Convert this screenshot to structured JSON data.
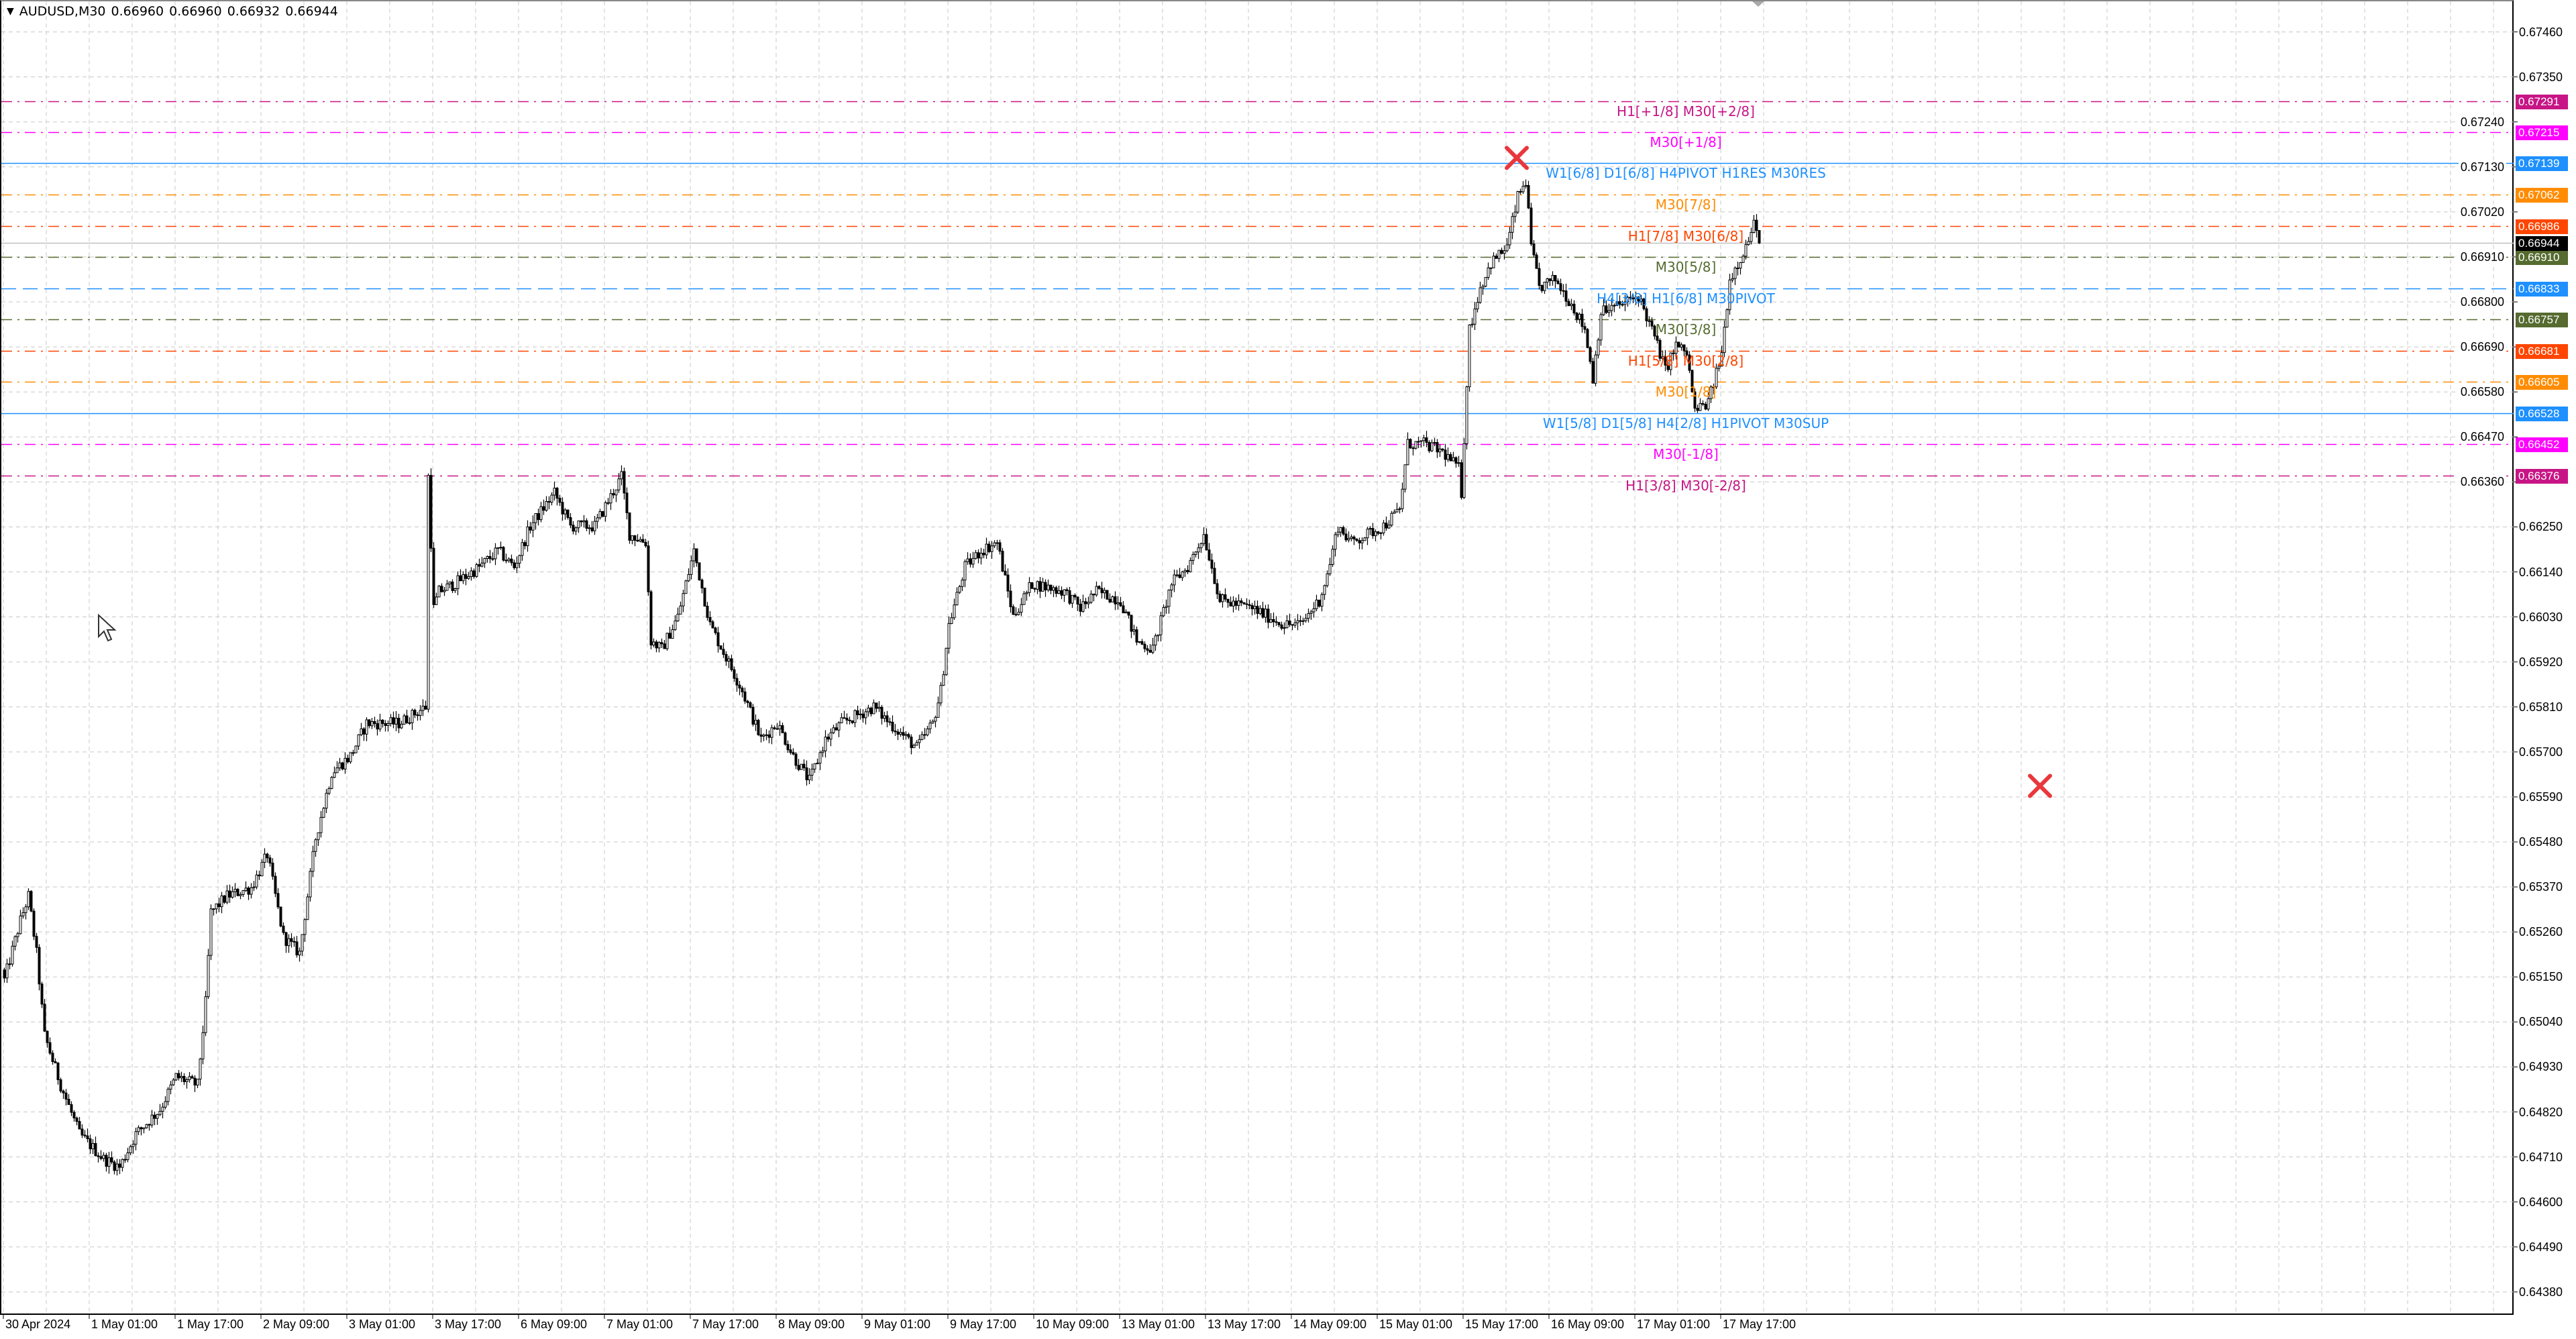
{
  "header": {
    "symbol_tf": "AUDUSD,M30",
    "open": "0.66960",
    "high": "0.66960",
    "low": "0.66932",
    "close": "0.66944"
  },
  "chart_data": {
    "type": "candlestick",
    "title": "AUDUSD,M30",
    "ylim": [
      0.64324,
      0.67538
    ],
    "grid": true,
    "current_price": {
      "value": 0.66944,
      "label": "0.66944",
      "color": "#000000"
    },
    "y_ticks": [
      "0.67460",
      "0.67350",
      "0.67240",
      "0.67130",
      "0.67020",
      "0.66910",
      "0.66800",
      "0.66690",
      "0.66580",
      "0.66470",
      "0.66360",
      "0.66250",
      "0.66140",
      "0.66030",
      "0.65920",
      "0.65810",
      "0.65700",
      "0.65590",
      "0.65480",
      "0.65370",
      "0.65260",
      "0.65150",
      "0.65040",
      "0.64930",
      "0.64820",
      "0.64710",
      "0.64600",
      "0.64490",
      "0.64380"
    ],
    "x_ticks": [
      "30 Apr 2024",
      "1 May 01:00",
      "1 May 17:00",
      "2 May 09:00",
      "3 May 01:00",
      "3 May 17:00",
      "6 May 09:00",
      "7 May 01:00",
      "7 May 17:00",
      "8 May 09:00",
      "9 May 01:00",
      "9 May 17:00",
      "10 May 09:00",
      "13 May 01:00",
      "13 May 17:00",
      "14 May 09:00",
      "15 May 01:00",
      "15 May 17:00",
      "16 May 09:00",
      "17 May 01:00",
      "17 May 17:00"
    ],
    "bars_per_x_tick": 32,
    "close_path": [
      [
        1,
        0.65167
      ],
      [
        6,
        0.65288
      ],
      [
        9,
        0.65348
      ],
      [
        12,
        0.65208
      ],
      [
        15,
        0.65007
      ],
      [
        21,
        0.64886
      ],
      [
        28,
        0.64766
      ],
      [
        37,
        0.64705
      ],
      [
        43,
        0.64685
      ],
      [
        49,
        0.64766
      ],
      [
        58,
        0.64826
      ],
      [
        64,
        0.64906
      ],
      [
        72,
        0.64886
      ],
      [
        75,
        0.65087
      ],
      [
        77,
        0.65308
      ],
      [
        83,
        0.65348
      ],
      [
        92,
        0.65368
      ],
      [
        98,
        0.65449
      ],
      [
        104,
        0.65248
      ],
      [
        110,
        0.65208
      ],
      [
        116,
        0.65489
      ],
      [
        122,
        0.6565
      ],
      [
        129,
        0.6569
      ],
      [
        135,
        0.6577
      ],
      [
        147,
        0.6577
      ],
      [
        157,
        0.6581
      ],
      [
        158,
        0.66373
      ],
      [
        160,
        0.66051
      ],
      [
        162,
        0.66092
      ],
      [
        168,
        0.66112
      ],
      [
        177,
        0.66152
      ],
      [
        184,
        0.66192
      ],
      [
        190,
        0.66152
      ],
      [
        196,
        0.66252
      ],
      [
        205,
        0.66333
      ],
      [
        211,
        0.66252
      ],
      [
        220,
        0.66252
      ],
      [
        230,
        0.66373
      ],
      [
        233,
        0.66232
      ],
      [
        239,
        0.66212
      ],
      [
        241,
        0.65971
      ],
      [
        245,
        0.65951
      ],
      [
        251,
        0.66031
      ],
      [
        257,
        0.66192
      ],
      [
        263,
        0.66011
      ],
      [
        269,
        0.65931
      ],
      [
        275,
        0.6585
      ],
      [
        282,
        0.6573
      ],
      [
        288,
        0.6577
      ],
      [
        294,
        0.6569
      ],
      [
        300,
        0.65629
      ],
      [
        306,
        0.6573
      ],
      [
        312,
        0.6577
      ],
      [
        324,
        0.6581
      ],
      [
        330,
        0.6577
      ],
      [
        340,
        0.6571
      ],
      [
        346,
        0.6577
      ],
      [
        349,
        0.6585
      ],
      [
        352,
        0.66011
      ],
      [
        358,
        0.66152
      ],
      [
        364,
        0.66192
      ],
      [
        370,
        0.66212
      ],
      [
        376,
        0.66031
      ],
      [
        383,
        0.66112
      ],
      [
        395,
        0.66092
      ],
      [
        401,
        0.66051
      ],
      [
        407,
        0.66092
      ],
      [
        416,
        0.66071
      ],
      [
        422,
        0.65971
      ],
      [
        428,
        0.65951
      ],
      [
        435,
        0.66112
      ],
      [
        441,
        0.66152
      ],
      [
        447,
        0.66232
      ],
      [
        453,
        0.66071
      ],
      [
        465,
        0.66051
      ],
      [
        471,
        0.66031
      ],
      [
        477,
        0.66011
      ],
      [
        483,
        0.66011
      ],
      [
        490,
        0.66071
      ],
      [
        493,
        0.66132
      ],
      [
        497,
        0.66252
      ],
      [
        502,
        0.66212
      ],
      [
        514,
        0.66252
      ],
      [
        520,
        0.66292
      ],
      [
        523,
        0.66453
      ],
      [
        529,
        0.66453
      ],
      [
        536,
        0.66433
      ],
      [
        542,
        0.66393
      ],
      [
        543,
        0.66333
      ],
      [
        546,
        0.66734
      ],
      [
        550,
        0.66835
      ],
      [
        554,
        0.66895
      ],
      [
        560,
        0.66935
      ],
      [
        564,
        0.67056
      ],
      [
        567,
        0.67096
      ],
      [
        569,
        0.66935
      ],
      [
        572,
        0.66835
      ],
      [
        578,
        0.66855
      ],
      [
        584,
        0.66795
      ],
      [
        589,
        0.66734
      ],
      [
        592,
        0.66614
      ],
      [
        595,
        0.66775
      ],
      [
        603,
        0.66795
      ],
      [
        609,
        0.66815
      ],
      [
        615,
        0.66714
      ],
      [
        619,
        0.66634
      ],
      [
        623,
        0.66694
      ],
      [
        627,
        0.66674
      ],
      [
        630,
        0.66533
      ],
      [
        635,
        0.66554
      ],
      [
        640,
        0.66674
      ],
      [
        643,
        0.66855
      ],
      [
        646,
        0.66895
      ],
      [
        649,
        0.66935
      ],
      [
        652,
        0.66988
      ],
      [
        654,
        0.66944
      ]
    ],
    "levels": [
      {
        "price": 0.67291,
        "value": "0.67291",
        "text": "H1[+1/8] M30[+2/8]",
        "color": "#c71585",
        "style": "dashdot"
      },
      {
        "price": 0.67215,
        "value": "0.67215",
        "text": "M30[+1/8]",
        "color": "#ff00ff",
        "style": "dashdot"
      },
      {
        "price": 0.67139,
        "value": "0.67139",
        "text": "W1[6/8] D1[6/8] H4PIVOT H1RES M30RES",
        "color": "#1e90ff",
        "style": "solid"
      },
      {
        "price": 0.67062,
        "value": "0.67062",
        "text": "M30[7/8]",
        "color": "#ff8c00",
        "style": "dashdot"
      },
      {
        "price": 0.66986,
        "value": "0.66986",
        "text": "H1[7/8] M30[6/8]",
        "color": "#ff4500",
        "style": "dashdot"
      },
      {
        "price": 0.6691,
        "value": "0.66910",
        "text": "M30[5/8]",
        "color": "#556b2f",
        "style": "dashdot"
      },
      {
        "price": 0.66833,
        "value": "0.66833",
        "text": "H4[3/8] H1[6/8] M30PIVOT",
        "color": "#1e90ff",
        "style": "dash"
      },
      {
        "price": 0.66757,
        "value": "0.66757",
        "text": "M30[3/8]",
        "color": "#556b2f",
        "style": "dashdot"
      },
      {
        "price": 0.66681,
        "value": "0.66681",
        "text": "H1[5/8] M30[2/8]",
        "color": "#ff4500",
        "style": "dashdot"
      },
      {
        "price": 0.66605,
        "value": "0.66605",
        "text": "M30[1/8]",
        "color": "#ff8c00",
        "style": "dashdot"
      },
      {
        "price": 0.66528,
        "value": "0.66528",
        "text": "W1[5/8] D1[5/8] H4[2/8] H1PIVOT M30SUP",
        "color": "#1e90ff",
        "style": "solid"
      },
      {
        "price": 0.66452,
        "value": "0.66452",
        "text": "M30[-1/8]",
        "color": "#ff00ff",
        "style": "dashdot"
      },
      {
        "price": 0.66376,
        "value": "0.66376",
        "text": "H1[3/8] M30[-2/8]",
        "color": "#c71585",
        "style": "dashdot"
      }
    ],
    "markers": [
      {
        "type": "cross",
        "bar": 564,
        "price": 0.67152,
        "color": "#e8383d"
      },
      {
        "type": "cross",
        "bar": 759,
        "price": 0.65617,
        "color": "#e8383d"
      }
    ]
  }
}
